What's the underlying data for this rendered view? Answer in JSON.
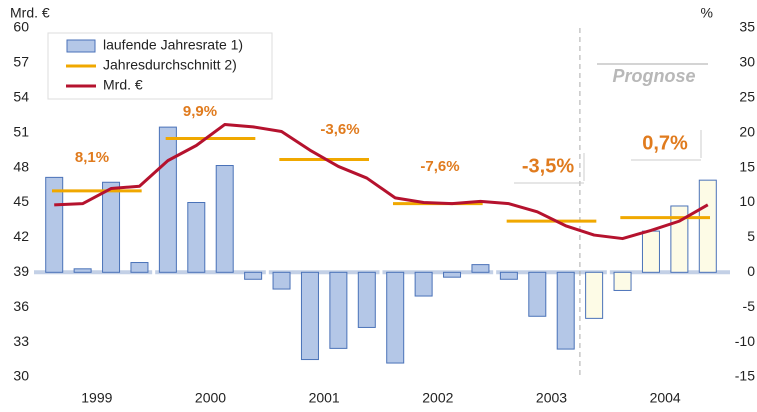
{
  "chart_data": {
    "type": "bar",
    "y_label": "Mrd. €",
    "y2_label": "%",
    "years": [
      "1999",
      "2000",
      "2001",
      "2002",
      "2003",
      "2004"
    ],
    "categories": [
      null,
      null,
      null,
      null,
      null,
      null,
      null,
      null,
      null,
      null,
      null,
      null,
      null,
      null,
      null,
      null,
      null,
      null,
      null,
      null,
      null,
      null,
      null,
      null
    ],
    "ylim": [
      30,
      60
    ],
    "yticks": [
      30,
      33,
      36,
      39,
      42,
      45,
      48,
      51,
      54,
      57,
      60
    ],
    "y2lim": [
      -15,
      35
    ],
    "y2ticks": [
      -15,
      -10,
      -5,
      0,
      5,
      10,
      15,
      20,
      25,
      30,
      35
    ],
    "series": [
      {
        "name": "laufende Jahresrate 1)",
        "type": "bar",
        "axis": "y2",
        "color": "#b4c7e7",
        "colors": [
          "#b4c7e7",
          "#b4c7e7",
          "#b4c7e7",
          "#b4c7e7",
          "#b4c7e7",
          "#b4c7e7",
          "#b4c7e7",
          "#b4c7e7",
          "#b4c7e7",
          "#b4c7e7",
          "#b4c7e7",
          "#b4c7e7",
          "#b4c7e7",
          "#b4c7e7",
          "#b4c7e7",
          "#b4c7e7",
          "#b4c7e7",
          "#b4c7e7",
          "#b4c7e7",
          "#fdfbe6",
          "#fdfbe6",
          "#fdfbe6",
          "#fdfbe6",
          "#fdfbe6"
        ],
        "values": [
          13.6,
          0.5,
          12.9,
          1.4,
          20.8,
          10.0,
          15.3,
          -1.0,
          -2.4,
          -12.5,
          -10.9,
          -7.9,
          -13.0,
          -3.4,
          -0.7,
          1.1,
          -1.0,
          -6.3,
          -11.0,
          -6.6,
          -2.6,
          5.9,
          9.5,
          13.2
        ]
      },
      {
        "name": "Mrd. €",
        "type": "line",
        "axis": "y",
        "color": "#b5122e",
        "values": [
          44.8,
          44.9,
          46.2,
          46.4,
          48.6,
          49.9,
          51.7,
          51.5,
          51.1,
          49.5,
          48.1,
          47.1,
          45.4,
          45.0,
          44.9,
          45.1,
          44.9,
          44.2,
          43.0,
          42.2,
          41.9,
          42.6,
          43.4,
          44.8
        ]
      }
    ],
    "annual_series": {
      "name": "Jahresdurchschnitt 2)",
      "axis": "y",
      "color": "#f0a800",
      "values": [
        46.0,
        50.5,
        48.7,
        44.9,
        43.4,
        43.7
      ]
    },
    "annotations": [
      "8,1%",
      "9,9%",
      "-3,6%",
      "-7,6%",
      "-3,5%",
      "0,7%"
    ],
    "forecast_label": "Prognose",
    "forecast_start": 19,
    "legend": "upper left"
  }
}
